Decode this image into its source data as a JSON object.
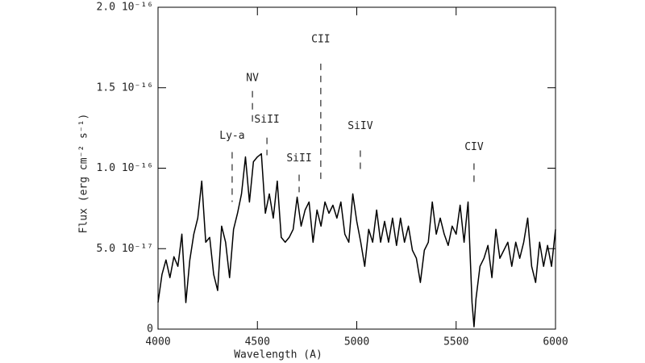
{
  "chart_data": {
    "type": "line",
    "x_label": "Wavelength (A)",
    "y_label": "Flux (erg cm⁻² s⁻¹)",
    "color": "#000000",
    "xlim": [
      4000,
      6000
    ],
    "xticks": [
      4000,
      4500,
      5000,
      5500,
      6000
    ],
    "ylim": [
      0,
      2e-16
    ],
    "yticks": [
      0,
      {
        "value": 5e-17,
        "label": "5.0 10⁻¹⁷"
      },
      {
        "value": 1e-16,
        "label": "1.0 10⁻¹⁶"
      },
      {
        "value": 1.5e-16,
        "label": "1.5 10⁻¹⁶"
      },
      {
        "value": 2e-16,
        "label": "2.0 10⁻¹⁶"
      }
    ],
    "x": [
      4000,
      4020,
      4040,
      4060,
      4080,
      4100,
      4120,
      4140,
      4160,
      4180,
      4200,
      4220,
      4240,
      4260,
      4280,
      4300,
      4320,
      4340,
      4360,
      4380,
      4400,
      4420,
      4440,
      4460,
      4480,
      4500,
      4520,
      4540,
      4560,
      4580,
      4600,
      4620,
      4640,
      4660,
      4680,
      4700,
      4720,
      4740,
      4760,
      4780,
      4800,
      4820,
      4840,
      4860,
      4880,
      4900,
      4920,
      4940,
      4960,
      4980,
      5000,
      5020,
      5040,
      5060,
      5080,
      5100,
      5120,
      5140,
      5160,
      5180,
      5200,
      5220,
      5240,
      5260,
      5280,
      5300,
      5320,
      5340,
      5360,
      5380,
      5400,
      5420,
      5440,
      5460,
      5480,
      5500,
      5520,
      5540,
      5560,
      5580,
      5590,
      5600,
      5620,
      5640,
      5660,
      5680,
      5700,
      5720,
      5740,
      5760,
      5780,
      5800,
      5820,
      5840,
      5860,
      5880,
      5900,
      5920,
      5940,
      5960,
      5980,
      6000
    ],
    "values": [
      1.65e-17,
      3.4e-17,
      4.3e-17,
      3.2e-17,
      4.5e-17,
      3.9e-17,
      5.9e-17,
      1.65e-17,
      4.3e-17,
      5.9e-17,
      6.9e-17,
      9.2e-17,
      5.4e-17,
      5.7e-17,
      3.4e-17,
      2.4e-17,
      6.4e-17,
      5.4e-17,
      3.2e-17,
      6.2e-17,
      7.2e-17,
      8.4e-17,
      1.07e-16,
      7.9e-17,
      1.04e-16,
      1.07e-16,
      1.09e-16,
      7.2e-17,
      8.4e-17,
      6.9e-17,
      9.2e-17,
      5.7e-17,
      5.4e-17,
      5.7e-17,
      6.2e-17,
      8.2e-17,
      6.4e-17,
      7.4e-17,
      7.9e-17,
      5.4e-17,
      7.4e-17,
      6.4e-17,
      7.9e-17,
      7.2e-17,
      7.7e-17,
      6.9e-17,
      7.9e-17,
      5.9e-17,
      5.4e-17,
      8.4e-17,
      6.7e-17,
      5.4e-17,
      3.9e-17,
      6.2e-17,
      5.4e-17,
      7.4e-17,
      5.4e-17,
      6.7e-17,
      5.4e-17,
      6.9e-17,
      5.2e-17,
      6.9e-17,
      5.4e-17,
      6.4e-17,
      4.9e-17,
      4.4e-17,
      2.9e-17,
      4.9e-17,
      5.4e-17,
      7.9e-17,
      5.9e-17,
      6.9e-17,
      5.9e-17,
      5.2e-17,
      6.4e-17,
      5.9e-17,
      7.7e-17,
      5.4e-17,
      7.9e-17,
      1.65e-17,
      1.5e-18,
      1.9e-17,
      3.9e-17,
      4.4e-17,
      5.2e-17,
      3.2e-17,
      6.2e-17,
      4.4e-17,
      4.9e-17,
      5.4e-17,
      3.9e-17,
      5.4e-17,
      4.4e-17,
      5.4e-17,
      6.9e-17,
      3.9e-17,
      2.9e-17,
      5.4e-17,
      3.9e-17,
      5.2e-17,
      3.9e-17,
      6.2e-17
    ],
    "annotations": [
      {
        "text": "Ly-a",
        "x": 4373,
        "y_text": 1.2e-16,
        "y1": 1.1e-16,
        "y2": 7.9e-17
      },
      {
        "text": "NV",
        "x": 4475,
        "y_text": 1.56e-16,
        "y1": 1.48e-16,
        "y2": 1.27e-16
      },
      {
        "text": "SiII",
        "x": 4548,
        "y_text": 1.3e-16,
        "y1": 1.19e-16,
        "y2": 1.08e-16
      },
      {
        "text": "SiII",
        "x": 4710,
        "y_text": 1.06e-16,
        "y1": 9.6e-17,
        "y2": 8.5e-17
      },
      {
        "text": "CII",
        "x": 4819,
        "y_text": 1.8e-16,
        "y1": 1.65e-16,
        "y2": 9e-17
      },
      {
        "text": "SiIV",
        "x": 5018,
        "y_text": 1.26e-16,
        "y1": 1.11e-16,
        "y2": 9.9e-17
      },
      {
        "text": "CIV",
        "x": 5590,
        "y_text": 1.13e-16,
        "y1": 1.03e-16,
        "y2": 9.1e-17
      }
    ]
  }
}
